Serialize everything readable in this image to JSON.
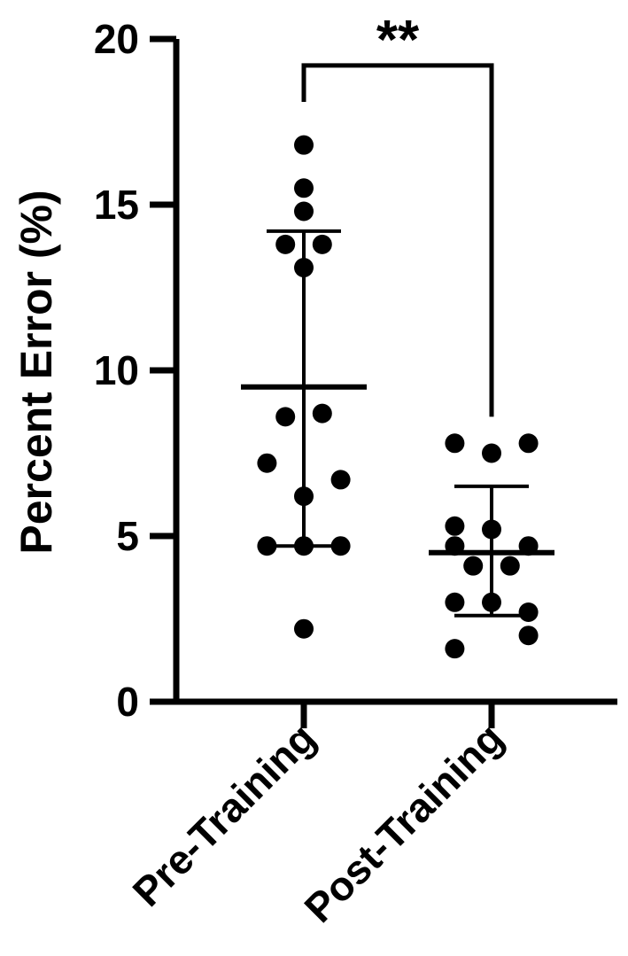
{
  "chart_data": {
    "type": "scatter",
    "title": "",
    "xlabel": "",
    "ylabel": "Percent Error (%)",
    "ylim": [
      0,
      20
    ],
    "yticks": [
      0,
      5,
      10,
      15,
      20
    ],
    "yticklabels": [
      "0",
      "5",
      "10",
      "15",
      "20"
    ],
    "categories": [
      "Pre-Training",
      "Post-Training"
    ],
    "grid": false,
    "legend": "none",
    "color": "#000000",
    "groups": [
      {
        "category": "Pre-Training",
        "points": [
          {
            "offset": 0.0,
            "y": 16.8
          },
          {
            "offset": 0.0,
            "y": 15.5
          },
          {
            "offset": 0.0,
            "y": 14.8
          },
          {
            "offset": -0.2,
            "y": 13.8
          },
          {
            "offset": 0.2,
            "y": 13.8
          },
          {
            "offset": 0.0,
            "y": 13.1
          },
          {
            "offset": -0.2,
            "y": 8.6
          },
          {
            "offset": 0.2,
            "y": 8.7
          },
          {
            "offset": -0.4,
            "y": 7.2
          },
          {
            "offset": 0.4,
            "y": 6.7
          },
          {
            "offset": 0.0,
            "y": 6.2
          },
          {
            "offset": -0.4,
            "y": 4.7
          },
          {
            "offset": 0.0,
            "y": 4.7
          },
          {
            "offset": 0.4,
            "y": 4.7
          },
          {
            "offset": 0.0,
            "y": 2.2
          }
        ],
        "mean": 9.5,
        "sd_low": 4.7,
        "sd_high": 14.2
      },
      {
        "category": "Post-Training",
        "points": [
          {
            "offset": -0.4,
            "y": 7.8
          },
          {
            "offset": 0.4,
            "y": 7.8
          },
          {
            "offset": 0.0,
            "y": 7.5
          },
          {
            "offset": -0.4,
            "y": 5.3
          },
          {
            "offset": 0.0,
            "y": 5.2
          },
          {
            "offset": -0.4,
            "y": 4.7
          },
          {
            "offset": 0.4,
            "y": 4.7
          },
          {
            "offset": -0.2,
            "y": 4.1
          },
          {
            "offset": 0.2,
            "y": 4.1
          },
          {
            "offset": -0.4,
            "y": 3.0
          },
          {
            "offset": 0.0,
            "y": 3.0
          },
          {
            "offset": 0.4,
            "y": 2.7
          },
          {
            "offset": 0.4,
            "y": 2.0
          },
          {
            "offset": -0.4,
            "y": 1.6
          }
        ],
        "mean": 4.5,
        "sd_low": 2.6,
        "sd_high": 6.5
      }
    ],
    "annotations": [
      {
        "text": "**",
        "between": [
          "Pre-Training",
          "Post-Training"
        ],
        "bracket_y": 19.2,
        "left_end": 18.1,
        "right_end": 8.6
      }
    ]
  }
}
